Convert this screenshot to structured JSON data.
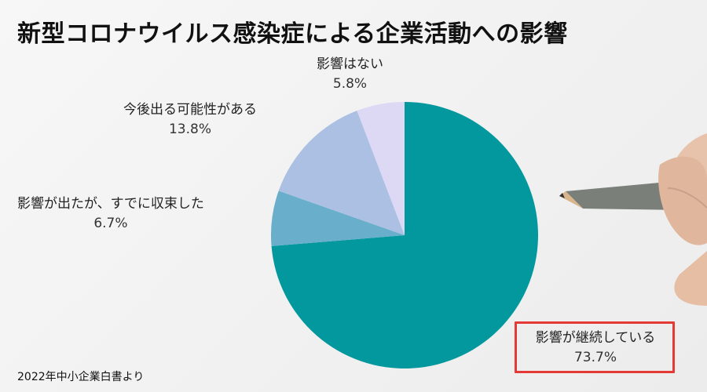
{
  "title": "新型コロナウイルス感染症による企業活動への影響",
  "source": "2022年中小企業白書より",
  "colors": {
    "ongoing": "#03989e",
    "recovered": "#69aecb",
    "possible": "#acc0e3",
    "none": "#ddd9f4",
    "highlight": "#e53935"
  },
  "chart_data": {
    "type": "pie",
    "title": "新型コロナウイルス感染症による企業活動への影響",
    "slices": [
      {
        "label": "影響が継続している",
        "value": 73.7,
        "display": "73.7%",
        "color": "#03989e",
        "highlighted": true
      },
      {
        "label": "影響が出たが、すでに収束した",
        "value": 6.7,
        "display": "6.7%",
        "color": "#69aecb"
      },
      {
        "label": "今後出る可能性がある",
        "value": 13.8,
        "display": "13.8%",
        "color": "#acc0e3"
      },
      {
        "label": "影響はない",
        "value": 5.8,
        "display": "5.8%",
        "color": "#ddd9f4"
      }
    ],
    "start_angle_deg": 0,
    "direction": "clockwise",
    "legend": "none"
  }
}
